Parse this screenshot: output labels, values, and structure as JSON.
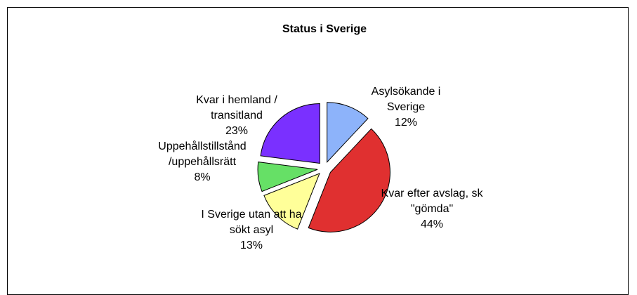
{
  "chart_data": {
    "type": "pie",
    "title": "Status i Sverige",
    "categories": [
      "Asylsökande i Sverige",
      "Kvar efter avslag, sk \"gömda\"",
      "I Sverige utan att ha sökt asyl",
      "Uppehållstillstånd /uppehållsrätt",
      "Kvar i hemland / transitland"
    ],
    "values": [
      12,
      44,
      13,
      8,
      23
    ],
    "value_labels": [
      "12%",
      "44%",
      "13%",
      "8%",
      "23%"
    ],
    "colors": [
      "#8db3fa",
      "#e03030",
      "#ffff99",
      "#66e066",
      "#7a30ff"
    ]
  }
}
